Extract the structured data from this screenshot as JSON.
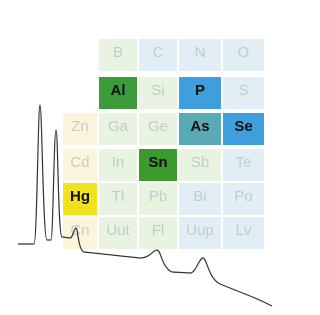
{
  "table": {
    "columns": [
      {
        "cells": [
          "Zn",
          "Cd",
          "Hg",
          "Cn"
        ]
      },
      {
        "cells": [
          "B",
          "Al",
          "Ga",
          "In",
          "Tl",
          "Uut"
        ]
      },
      {
        "cells": [
          "C",
          "Si",
          "Ge",
          "Sn",
          "Pb",
          "Fl"
        ]
      },
      {
        "cells": [
          "N",
          "P",
          "As",
          "Sb",
          "Bi",
          "Uup"
        ]
      },
      {
        "cells": [
          "O",
          "S",
          "Se",
          "Te",
          "Po",
          "Lv"
        ]
      }
    ]
  }
}
